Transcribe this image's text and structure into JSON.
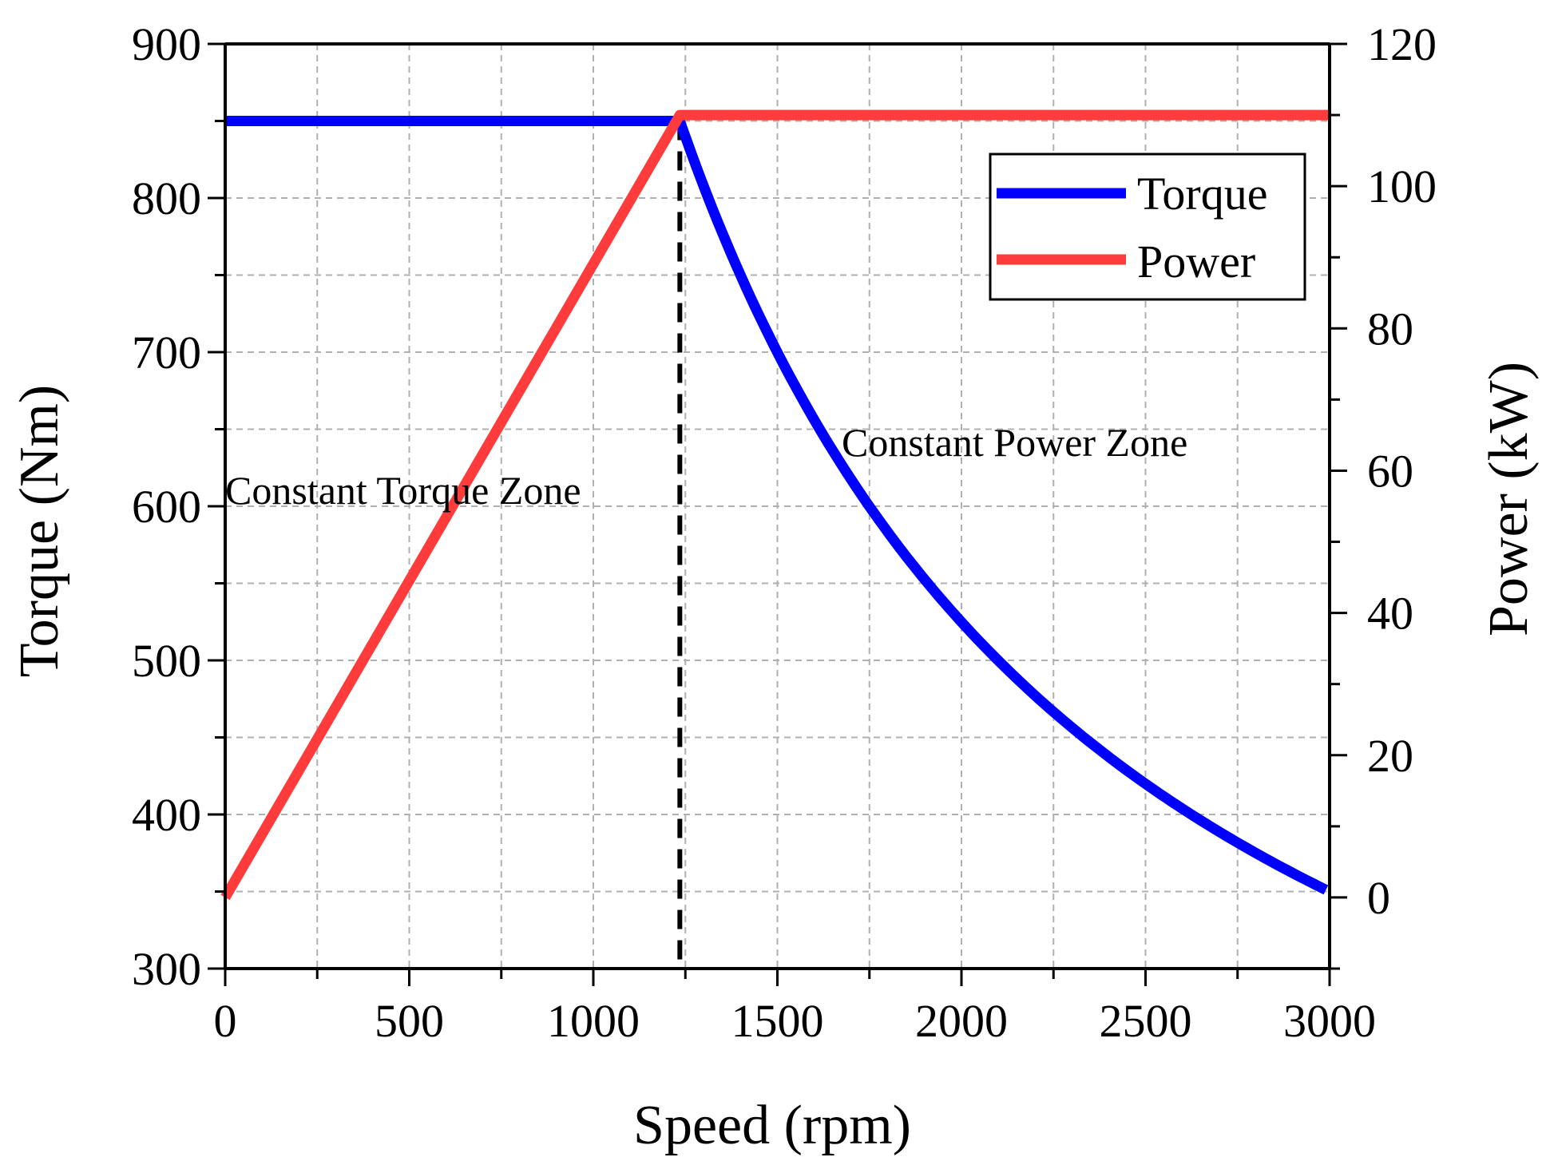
{
  "chart_data": {
    "type": "line",
    "title": "",
    "xlabel": "Speed (rpm)",
    "ylabel": "Torque (Nm)",
    "y2label": "Power (kW)",
    "xlim": [
      0,
      3000
    ],
    "ylim": [
      300,
      900
    ],
    "y2lim": [
      -10,
      120
    ],
    "xticks": [
      0,
      500,
      1000,
      1500,
      2000,
      2500,
      3000
    ],
    "yticks": [
      300,
      400,
      500,
      600,
      700,
      800,
      900
    ],
    "y2ticks": [
      0,
      20,
      40,
      60,
      80,
      100,
      120
    ],
    "grid": true,
    "legend_position": "top-right",
    "base_speed": 1235,
    "series": [
      {
        "name": "Torque",
        "axis": "left",
        "color": "#0000ff",
        "x": [
          0,
          1235,
          1300,
          1400,
          1500,
          1600,
          1700,
          1800,
          1900,
          2000,
          2100,
          2200,
          2300,
          2400,
          2500,
          2600,
          2700,
          2800,
          2900,
          3000
        ],
        "values": [
          850,
          850,
          808,
          750,
          700,
          656,
          618,
          583,
          553,
          525,
          500,
          477,
          457,
          438,
          420,
          404,
          389,
          375,
          362,
          350
        ]
      },
      {
        "name": "Power",
        "axis": "right",
        "color": "#ff3b3b",
        "x": [
          0,
          1235,
          3000
        ],
        "values": [
          0,
          110,
          110
        ]
      }
    ],
    "annotations": [
      {
        "text": "Constant Torque Zone",
        "x": 0,
        "y": 610
      },
      {
        "text": "Constant Power Zone",
        "x": 1670,
        "y": 641
      }
    ]
  }
}
